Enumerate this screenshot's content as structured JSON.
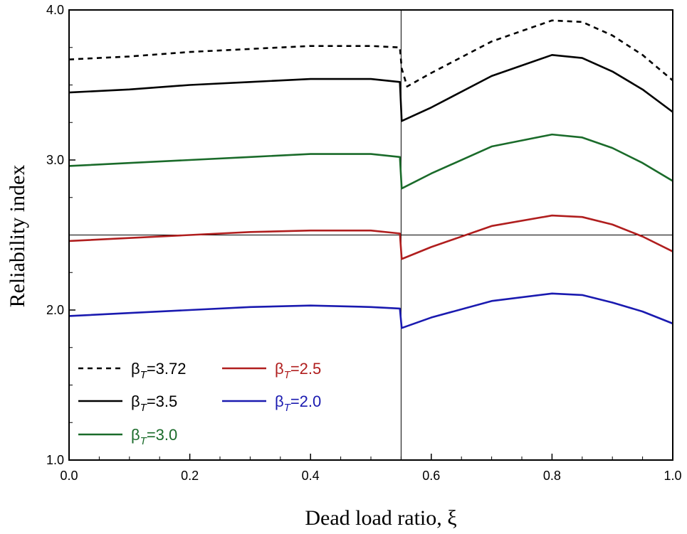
{
  "chart_data": {
    "type": "line",
    "xlabel": "Dead load ratio, ξ",
    "ylabel": "Reliability index",
    "xlim": [
      0.0,
      1.0
    ],
    "ylim": [
      1.0,
      4.0
    ],
    "xticks": [
      "0.0",
      "0.2",
      "0.4",
      "0.6",
      "0.8",
      "1.0"
    ],
    "yticks": [
      "1.0",
      "2.0",
      "3.0",
      "4.0"
    ],
    "reference_lines": {
      "vertical_x": 0.55,
      "horizontal_y": 2.5
    },
    "legend_position": "bottom-left",
    "series": [
      {
        "name": "βT=3.72",
        "color": "#000000",
        "dash": "dashed",
        "points": [
          [
            0.0,
            3.67
          ],
          [
            0.1,
            3.69
          ],
          [
            0.2,
            3.72
          ],
          [
            0.3,
            3.74
          ],
          [
            0.4,
            3.76
          ],
          [
            0.5,
            3.76
          ],
          [
            0.548,
            3.75
          ],
          [
            0.551,
            3.61
          ],
          [
            0.56,
            3.49
          ],
          [
            0.6,
            3.58
          ],
          [
            0.7,
            3.79
          ],
          [
            0.8,
            3.93
          ],
          [
            0.85,
            3.92
          ],
          [
            0.9,
            3.83
          ],
          [
            0.95,
            3.7
          ],
          [
            1.0,
            3.53
          ]
        ]
      },
      {
        "name": "βT=3.5",
        "color": "#000000",
        "dash": "solid",
        "points": [
          [
            0.0,
            3.45
          ],
          [
            0.1,
            3.47
          ],
          [
            0.2,
            3.5
          ],
          [
            0.3,
            3.52
          ],
          [
            0.4,
            3.54
          ],
          [
            0.5,
            3.54
          ],
          [
            0.548,
            3.52
          ],
          [
            0.551,
            3.26
          ],
          [
            0.6,
            3.35
          ],
          [
            0.7,
            3.56
          ],
          [
            0.8,
            3.7
          ],
          [
            0.85,
            3.68
          ],
          [
            0.9,
            3.59
          ],
          [
            0.95,
            3.47
          ],
          [
            1.0,
            3.32
          ]
        ]
      },
      {
        "name": "βT=3.0",
        "color": "#1a6b2a",
        "dash": "solid",
        "points": [
          [
            0.0,
            2.96
          ],
          [
            0.1,
            2.98
          ],
          [
            0.2,
            3.0
          ],
          [
            0.3,
            3.02
          ],
          [
            0.4,
            3.04
          ],
          [
            0.5,
            3.04
          ],
          [
            0.548,
            3.02
          ],
          [
            0.551,
            2.81
          ],
          [
            0.6,
            2.91
          ],
          [
            0.7,
            3.09
          ],
          [
            0.8,
            3.17
          ],
          [
            0.85,
            3.15
          ],
          [
            0.9,
            3.08
          ],
          [
            0.95,
            2.98
          ],
          [
            1.0,
            2.86
          ]
        ]
      },
      {
        "name": "βT=2.5",
        "color": "#b01e1e",
        "dash": "solid",
        "points": [
          [
            0.0,
            2.46
          ],
          [
            0.1,
            2.48
          ],
          [
            0.2,
            2.5
          ],
          [
            0.3,
            2.52
          ],
          [
            0.4,
            2.53
          ],
          [
            0.5,
            2.53
          ],
          [
            0.548,
            2.51
          ],
          [
            0.551,
            2.34
          ],
          [
            0.6,
            2.42
          ],
          [
            0.7,
            2.56
          ],
          [
            0.8,
            2.63
          ],
          [
            0.85,
            2.62
          ],
          [
            0.9,
            2.57
          ],
          [
            0.95,
            2.49
          ],
          [
            1.0,
            2.39
          ]
        ]
      },
      {
        "name": "βT=2.0",
        "color": "#1a1ab0",
        "dash": "solid",
        "points": [
          [
            0.0,
            1.96
          ],
          [
            0.1,
            1.98
          ],
          [
            0.2,
            2.0
          ],
          [
            0.3,
            2.02
          ],
          [
            0.4,
            2.03
          ],
          [
            0.5,
            2.02
          ],
          [
            0.548,
            2.01
          ],
          [
            0.551,
            1.88
          ],
          [
            0.6,
            1.95
          ],
          [
            0.7,
            2.06
          ],
          [
            0.8,
            2.11
          ],
          [
            0.85,
            2.1
          ],
          [
            0.9,
            2.05
          ],
          [
            0.95,
            1.99
          ],
          [
            1.0,
            1.91
          ]
        ]
      }
    ],
    "legend": [
      {
        "symbol": "β",
        "sub": "T",
        "value": "=3.72",
        "color": "#000000",
        "dash": "dashed"
      },
      {
        "symbol": "β",
        "sub": "T",
        "value": "=3.5",
        "color": "#000000",
        "dash": "solid"
      },
      {
        "symbol": "β",
        "sub": "T",
        "value": "=3.0",
        "color": "#1a6b2a",
        "dash": "solid"
      },
      {
        "symbol": "β",
        "sub": "T",
        "value": "=2.5",
        "color": "#b01e1e",
        "dash": "solid"
      },
      {
        "symbol": "β",
        "sub": "T",
        "value": "=2.0",
        "color": "#1a1ab0",
        "dash": "solid"
      }
    ]
  }
}
